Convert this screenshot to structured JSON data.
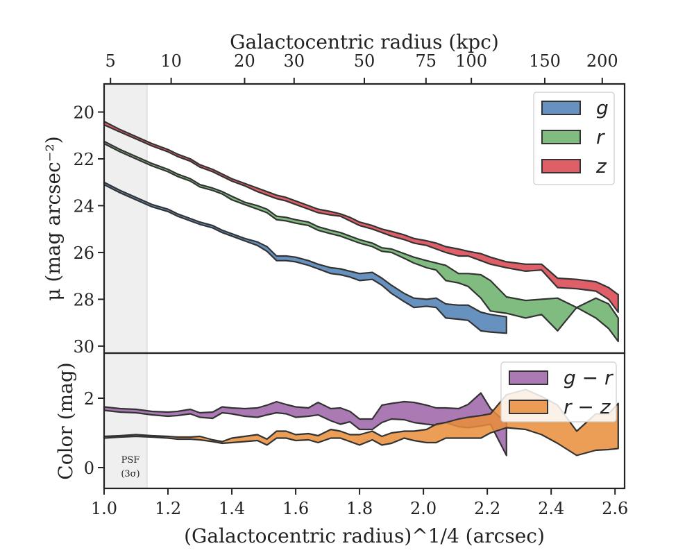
{
  "chart_data": [
    {
      "type": "area",
      "panel": "top",
      "ylabel": "μ (mag arcsec⁻²)",
      "xlabel_top": "Galactocentric radius (kpc)",
      "ylim": [
        30.3,
        18.8
      ],
      "y_inverted": true,
      "yticks": [
        20,
        22,
        24,
        26,
        28,
        30
      ],
      "xlim": [
        1.0,
        2.63
      ],
      "top_xticks": [
        {
          "label": "5",
          "value": 1.02
        },
        {
          "label": "10",
          "value": 1.21
        },
        {
          "label": "20",
          "value": 1.44
        },
        {
          "label": "30",
          "value": 1.595
        },
        {
          "label": "50",
          "value": 1.815
        },
        {
          "label": "75",
          "value": 2.008
        },
        {
          "label": "100",
          "value": 2.15
        },
        {
          "label": "150",
          "value": 2.38
        },
        {
          "label": "200",
          "value": 2.56
        }
      ],
      "legend_position": "top-right",
      "grid": false,
      "series": [
        {
          "name": "g",
          "color": "#4c7eb4",
          "x": [
            1.0,
            1.05,
            1.1,
            1.15,
            1.2,
            1.23,
            1.27,
            1.3,
            1.34,
            1.37,
            1.4,
            1.44,
            1.48,
            1.51,
            1.54,
            1.57,
            1.6,
            1.64,
            1.67,
            1.71,
            1.74,
            1.77,
            1.8,
            1.84,
            1.87,
            1.9,
            1.94,
            1.97,
            2.01,
            2.04,
            2.07,
            2.11,
            2.14,
            2.18,
            2.21,
            2.26
          ],
          "lower": [
            23.0,
            23.35,
            23.65,
            23.95,
            24.15,
            24.35,
            24.55,
            24.7,
            24.85,
            25.05,
            25.2,
            25.4,
            25.55,
            25.75,
            26.15,
            26.15,
            26.2,
            26.35,
            26.5,
            26.65,
            26.7,
            26.8,
            26.9,
            26.85,
            27.1,
            27.4,
            27.75,
            27.95,
            28.0,
            27.95,
            28.2,
            28.25,
            28.25,
            28.55,
            28.65,
            28.75
          ],
          "upper": [
            23.1,
            23.45,
            23.75,
            24.05,
            24.25,
            24.45,
            24.65,
            24.8,
            24.95,
            25.15,
            25.3,
            25.5,
            25.7,
            25.95,
            26.35,
            26.35,
            26.4,
            26.55,
            26.7,
            26.9,
            26.95,
            27.05,
            27.2,
            27.15,
            27.4,
            27.75,
            28.1,
            28.35,
            28.3,
            28.35,
            28.8,
            28.85,
            28.9,
            29.35,
            29.4,
            29.45
          ]
        },
        {
          "name": "r",
          "color": "#6ab06a",
          "x": [
            1.0,
            1.05,
            1.1,
            1.15,
            1.2,
            1.23,
            1.27,
            1.3,
            1.34,
            1.37,
            1.4,
            1.44,
            1.48,
            1.51,
            1.54,
            1.57,
            1.6,
            1.64,
            1.67,
            1.71,
            1.74,
            1.77,
            1.8,
            1.84,
            1.87,
            1.9,
            1.94,
            1.97,
            2.01,
            2.04,
            2.07,
            2.11,
            2.14,
            2.18,
            2.21,
            2.26,
            2.32,
            2.37,
            2.42,
            2.48,
            2.54,
            2.58,
            2.61
          ],
          "lower": [
            21.25,
            21.6,
            21.9,
            22.2,
            22.45,
            22.65,
            22.85,
            23.1,
            23.25,
            23.4,
            23.6,
            23.85,
            24.0,
            24.15,
            24.45,
            24.5,
            24.6,
            24.7,
            24.9,
            25.05,
            25.15,
            25.3,
            25.45,
            25.6,
            25.8,
            25.85,
            26.05,
            26.2,
            26.35,
            26.45,
            26.55,
            26.9,
            26.9,
            26.95,
            27.2,
            27.9,
            28.05,
            28.0,
            27.95,
            28.35,
            27.95,
            28.2,
            28.8
          ],
          "upper": [
            21.35,
            21.7,
            22.0,
            22.3,
            22.55,
            22.75,
            22.95,
            23.2,
            23.35,
            23.5,
            23.75,
            23.95,
            24.15,
            24.3,
            24.6,
            24.65,
            24.75,
            24.85,
            25.05,
            25.2,
            25.3,
            25.45,
            25.6,
            25.75,
            25.95,
            26.0,
            26.25,
            26.45,
            26.65,
            26.75,
            27.2,
            27.3,
            27.45,
            27.95,
            28.5,
            28.6,
            28.8,
            28.65,
            29.35,
            28.35,
            28.8,
            29.25,
            29.8
          ]
        },
        {
          "name": "z",
          "color": "#d9434e",
          "x": [
            1.0,
            1.05,
            1.1,
            1.15,
            1.2,
            1.23,
            1.27,
            1.3,
            1.34,
            1.37,
            1.4,
            1.44,
            1.48,
            1.51,
            1.54,
            1.57,
            1.6,
            1.64,
            1.67,
            1.71,
            1.74,
            1.77,
            1.8,
            1.84,
            1.87,
            1.9,
            1.94,
            1.97,
            2.01,
            2.04,
            2.07,
            2.11,
            2.14,
            2.18,
            2.21,
            2.26,
            2.32,
            2.37,
            2.42,
            2.48,
            2.54,
            2.58,
            2.61
          ],
          "lower": [
            20.4,
            20.75,
            21.05,
            21.35,
            21.6,
            21.8,
            22.0,
            22.25,
            22.45,
            22.65,
            22.85,
            23.05,
            23.25,
            23.4,
            23.55,
            23.65,
            23.8,
            24.0,
            24.15,
            24.25,
            24.35,
            24.5,
            24.7,
            24.85,
            25.0,
            25.1,
            25.25,
            25.4,
            25.5,
            25.6,
            25.75,
            25.85,
            25.95,
            26.05,
            26.2,
            26.4,
            26.5,
            26.5,
            27.1,
            27.15,
            27.25,
            27.5,
            27.8
          ],
          "upper": [
            20.55,
            20.85,
            21.15,
            21.45,
            21.7,
            21.9,
            22.1,
            22.35,
            22.55,
            22.75,
            22.95,
            23.15,
            23.4,
            23.55,
            23.7,
            23.8,
            23.95,
            24.15,
            24.3,
            24.4,
            24.45,
            24.65,
            24.85,
            25.0,
            25.15,
            25.3,
            25.45,
            25.6,
            25.7,
            25.85,
            26.0,
            26.15,
            26.15,
            26.35,
            26.5,
            26.65,
            26.8,
            26.75,
            27.5,
            27.55,
            27.65,
            28.0,
            28.55
          ]
        }
      ]
    },
    {
      "type": "area",
      "panel": "bottom",
      "ylabel": "Color (mag)",
      "xlabel": "(Galactocentric radius)^1/4 (arcsec)",
      "xlim": [
        1.0,
        2.63
      ],
      "xticks": [
        1.0,
        1.2,
        1.4,
        1.6,
        1.8,
        2.0,
        2.2,
        2.4,
        2.6
      ],
      "ylim": [
        -0.6,
        3.3
      ],
      "yticks": [
        0,
        2
      ],
      "legend_position": "top-right",
      "psf_region": {
        "x_end": 1.13,
        "label_line1": "PSF",
        "label_line2": "(3σ)"
      },
      "series": [
        {
          "name": "g − r",
          "color": "#9c63a8",
          "x": [
            1.0,
            1.05,
            1.1,
            1.15,
            1.2,
            1.23,
            1.27,
            1.3,
            1.34,
            1.37,
            1.4,
            1.44,
            1.48,
            1.51,
            1.54,
            1.57,
            1.6,
            1.64,
            1.67,
            1.71,
            1.74,
            1.77,
            1.8,
            1.84,
            1.87,
            1.9,
            1.94,
            1.97,
            2.01,
            2.04,
            2.07,
            2.11,
            2.14,
            2.18,
            2.21,
            2.26
          ],
          "lower": [
            1.65,
            1.6,
            1.58,
            1.52,
            1.48,
            1.5,
            1.55,
            1.45,
            1.42,
            1.58,
            1.55,
            1.48,
            1.45,
            1.52,
            1.58,
            1.55,
            1.45,
            1.48,
            1.52,
            1.35,
            1.25,
            1.32,
            1.1,
            1.1,
            1.3,
            1.4,
            1.38,
            1.3,
            1.25,
            1.22,
            1.3,
            1.18,
            1.15,
            1.2,
            1.25,
            0.35
          ],
          "upper": [
            1.75,
            1.7,
            1.68,
            1.62,
            1.6,
            1.62,
            1.68,
            1.58,
            1.6,
            1.75,
            1.72,
            1.7,
            1.72,
            1.8,
            1.9,
            1.82,
            1.75,
            1.72,
            1.88,
            1.7,
            1.72,
            1.62,
            1.4,
            1.4,
            1.8,
            1.85,
            1.9,
            1.88,
            1.8,
            1.72,
            1.72,
            1.7,
            1.82,
            2.15,
            1.7,
            1.28
          ]
        },
        {
          "name": "r − z",
          "color": "#e98d3a",
          "x": [
            1.0,
            1.05,
            1.1,
            1.15,
            1.2,
            1.23,
            1.27,
            1.3,
            1.34,
            1.37,
            1.4,
            1.44,
            1.48,
            1.51,
            1.54,
            1.57,
            1.6,
            1.64,
            1.67,
            1.71,
            1.74,
            1.77,
            1.8,
            1.84,
            1.87,
            1.9,
            1.94,
            1.97,
            2.01,
            2.04,
            2.07,
            2.11,
            2.14,
            2.18,
            2.21,
            2.26,
            2.32,
            2.37,
            2.42,
            2.48,
            2.54,
            2.58,
            2.61
          ],
          "lower": [
            0.85,
            0.88,
            0.9,
            0.88,
            0.85,
            0.82,
            0.82,
            0.8,
            0.75,
            0.7,
            0.72,
            0.75,
            0.78,
            0.65,
            0.85,
            0.85,
            0.78,
            0.8,
            0.72,
            0.85,
            0.85,
            0.75,
            0.65,
            0.8,
            0.65,
            0.7,
            0.85,
            0.78,
            0.72,
            0.72,
            0.85,
            0.85,
            0.85,
            0.85,
            1.0,
            1.15,
            1.1,
            0.95,
            0.7,
            0.35,
            0.5,
            0.52,
            0.55
          ],
          "upper": [
            0.9,
            0.92,
            0.95,
            0.92,
            0.9,
            0.88,
            0.88,
            0.9,
            0.8,
            0.75,
            0.85,
            0.9,
            0.95,
            0.82,
            1.05,
            1.05,
            0.95,
            0.98,
            0.92,
            1.1,
            1.05,
            0.95,
            0.95,
            1.05,
            0.9,
            1.0,
            1.05,
            1.05,
            1.1,
            1.25,
            1.3,
            1.4,
            1.45,
            1.5,
            1.55,
            2.1,
            2.25,
            2.05,
            1.8,
            1.05,
            1.55,
            1.55,
            1.85
          ]
        }
      ]
    }
  ]
}
